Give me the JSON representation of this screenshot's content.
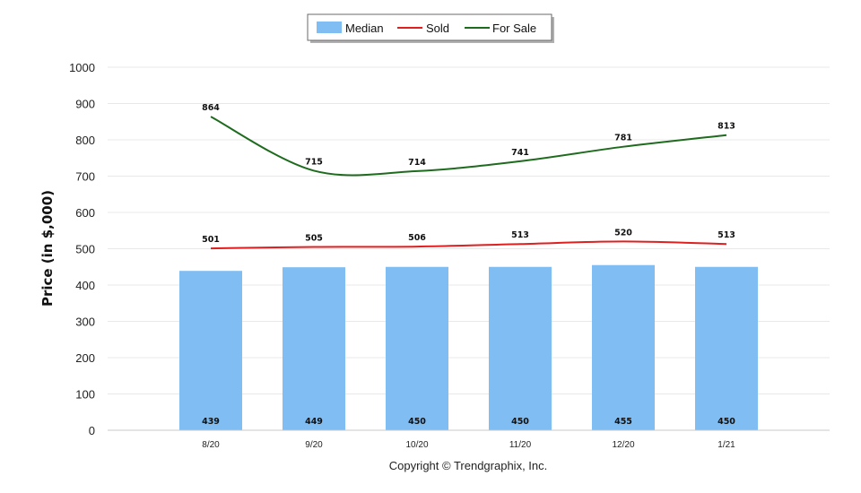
{
  "chart_data": {
    "type": "bar+line",
    "categories": [
      "8/20",
      "9/20",
      "10/20",
      "11/20",
      "12/20",
      "1/21"
    ],
    "series": [
      {
        "name": "Median",
        "kind": "bar",
        "color": "#7fbdf3",
        "values": [
          439,
          449,
          450,
          450,
          455,
          450
        ]
      },
      {
        "name": "Sold",
        "kind": "line",
        "color": "#e02020",
        "values": [
          501,
          505,
          506,
          513,
          520,
          513
        ]
      },
      {
        "name": "For Sale",
        "kind": "line",
        "color": "#1e6b1e",
        "values": [
          864,
          715,
          714,
          741,
          781,
          813
        ]
      }
    ],
    "title": "",
    "xlabel": "",
    "ylabel": "Price (in $,000)",
    "ylim": [
      0,
      1000
    ],
    "yticks": [
      0,
      100,
      200,
      300,
      400,
      500,
      600,
      700,
      800,
      900,
      1000
    ],
    "grid": true,
    "legend_placement": "top-center"
  },
  "footer": {
    "copyright": "Copyright © Trendgraphix, Inc."
  }
}
